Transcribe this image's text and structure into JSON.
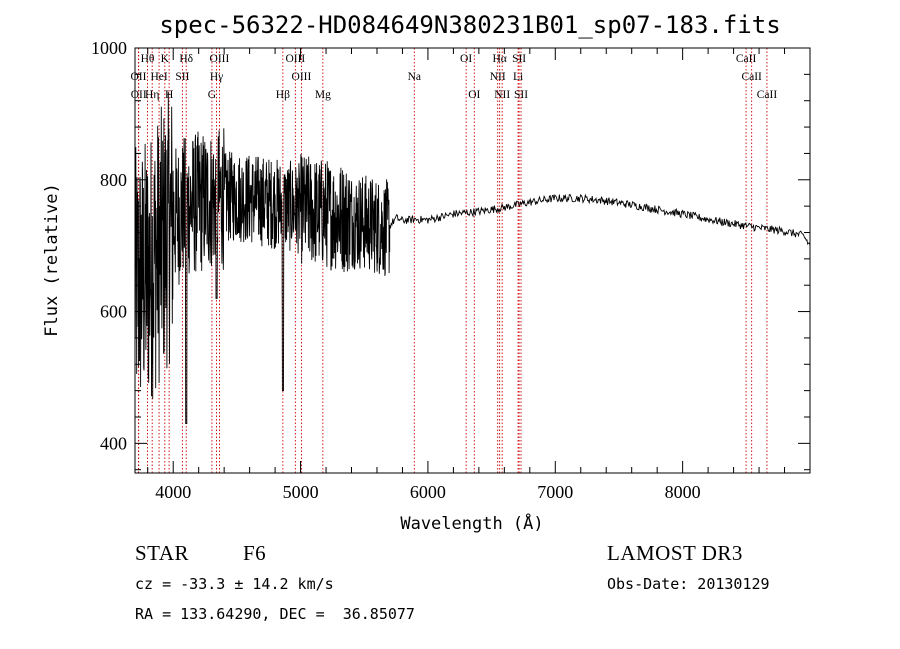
{
  "chart_data": {
    "type": "line",
    "title": "spec-56322-HD084649N380231B01_sp07-183.fits",
    "xlabel": "Wavelength (Å)",
    "ylabel": "Flux (relative)",
    "xlim": [
      3700,
      9000
    ],
    "ylim": [
      355,
      1000
    ],
    "x_ticks": [
      4000,
      5000,
      6000,
      7000,
      8000
    ],
    "y_ticks": [
      400,
      600,
      800,
      1000
    ],
    "grid": false,
    "spectrum": {
      "blue_start": 3700,
      "blue_end": 5700,
      "red_anchors": [
        [
          5700,
          730
        ],
        [
          5750,
          742
        ],
        [
          5800,
          738
        ],
        [
          5900,
          740
        ],
        [
          6000,
          739
        ],
        [
          6200,
          748
        ],
        [
          6400,
          752
        ],
        [
          6600,
          758
        ],
        [
          6800,
          766
        ],
        [
          7000,
          772
        ],
        [
          7200,
          772
        ],
        [
          7400,
          768
        ],
        [
          7600,
          762
        ],
        [
          7800,
          755
        ],
        [
          8000,
          748
        ],
        [
          8200,
          740
        ],
        [
          8400,
          733
        ],
        [
          8600,
          727
        ],
        [
          8800,
          722
        ],
        [
          8950,
          715
        ],
        [
          9000,
          700
        ]
      ],
      "blue_envelope": [
        [
          3700,
          640
        ],
        [
          3800,
          660
        ],
        [
          3900,
          700
        ],
        [
          4000,
          740
        ],
        [
          4100,
          760
        ],
        [
          4300,
          770
        ],
        [
          4500,
          775
        ],
        [
          4700,
          768
        ],
        [
          4900,
          760
        ],
        [
          5100,
          752
        ],
        [
          5300,
          745
        ],
        [
          5500,
          735
        ],
        [
          5700,
          725
        ]
      ]
    },
    "lines": [
      {
        "label": "Hθ",
        "x": 3798,
        "row": 0
      },
      {
        "label": "K",
        "x": 3934,
        "row": 0
      },
      {
        "label": "Hδ",
        "x": 4102,
        "row": 0
      },
      {
        "label": "OIII",
        "x": 4363,
        "row": 0
      },
      {
        "label": "OIII",
        "x": 4959,
        "row": 0
      },
      {
        "label": "OI",
        "x": 6300,
        "row": 0
      },
      {
        "label": "Hα",
        "x": 6563,
        "row": 0
      },
      {
        "label": "SII",
        "x": 6716,
        "row": 0
      },
      {
        "label": "CaII",
        "x": 8498,
        "row": 0
      },
      {
        "label": "OII",
        "x": 3727,
        "row": 1
      },
      {
        "label": "HeI",
        "x": 3889,
        "row": 1
      },
      {
        "label": "SII",
        "x": 4072,
        "row": 1
      },
      {
        "label": "Hγ",
        "x": 4340,
        "row": 1
      },
      {
        "label": "OIII",
        "x": 5007,
        "row": 1
      },
      {
        "label": "Na",
        "x": 5893,
        "row": 1
      },
      {
        "label": "NII",
        "x": 6548,
        "row": 1
      },
      {
        "label": "Li",
        "x": 6708,
        "row": 1
      },
      {
        "label": "CaII",
        "x": 8542,
        "row": 1
      },
      {
        "label": "OII",
        "x": 3729,
        "row": 2
      },
      {
        "label": "Hη",
        "x": 3835,
        "row": 2
      },
      {
        "label": "H",
        "x": 3968,
        "row": 2
      },
      {
        "label": "G",
        "x": 4304,
        "row": 2
      },
      {
        "label": "Hβ",
        "x": 4861,
        "row": 2
      },
      {
        "label": "Mg",
        "x": 5175,
        "row": 2
      },
      {
        "label": "OI",
        "x": 6364,
        "row": 2
      },
      {
        "label": "NII",
        "x": 6583,
        "row": 2
      },
      {
        "label": "SII",
        "x": 6731,
        "row": 2
      },
      {
        "label": "CaII",
        "x": 8662,
        "row": 2
      }
    ],
    "line_color": "#cc0000"
  },
  "info": {
    "object_class": "STAR",
    "subclass": "F6",
    "survey": "LAMOST DR3",
    "redshift": "cz = -33.3 ± 14.2 km/s",
    "obs_date": "Obs-Date: 20130129",
    "coords": "RA = 133.64290, DEC =  36.85077"
  }
}
